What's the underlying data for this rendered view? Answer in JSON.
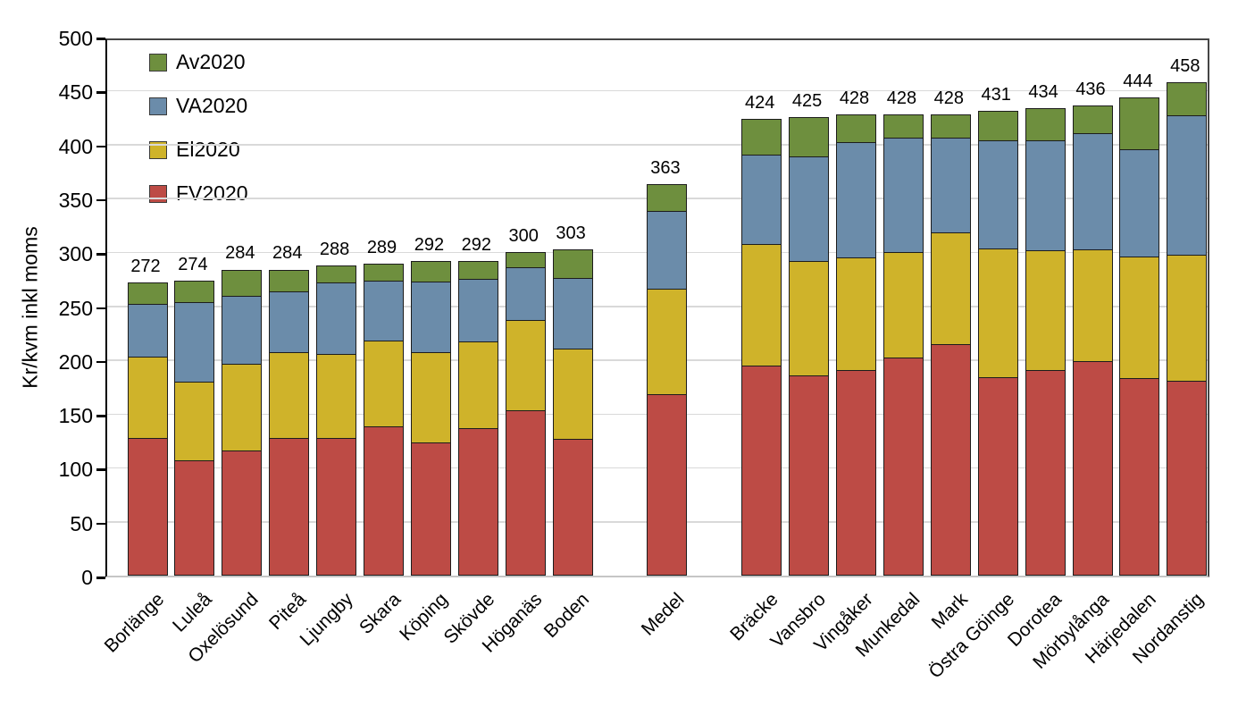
{
  "chart_data": {
    "type": "bar",
    "variant": "stacked",
    "title": "",
    "xlabel": "",
    "ylabel": "Kr/kvm inkl moms",
    "ylim": [
      0,
      500
    ],
    "yticks": [
      0,
      50,
      100,
      150,
      200,
      250,
      300,
      350,
      400,
      450,
      500
    ],
    "grid": true,
    "legend_position": "top-left-inside",
    "legend": [
      {
        "label": "Av2020",
        "color": "#6e8f3e"
      },
      {
        "label": "VA2020",
        "color": "#6b8caa"
      },
      {
        "label": "El2020",
        "color": "#cfb32a"
      },
      {
        "label": "FV2020",
        "color": "#bd4b45"
      }
    ],
    "series_order_bottom_to_top": [
      "FV2020",
      "El2020",
      "VA2020",
      "Av2020"
    ],
    "bars": [
      {
        "slot": 0,
        "name": "Borlänge",
        "total": 272,
        "values": {
          "FV2020": 128,
          "El2020": 76,
          "VA2020": 49,
          "Av2020": 19
        }
      },
      {
        "slot": 1,
        "name": "Luleå",
        "total": 274,
        "values": {
          "FV2020": 107,
          "El2020": 73,
          "VA2020": 74,
          "Av2020": 20
        }
      },
      {
        "slot": 2,
        "name": "Oxelösund",
        "total": 284,
        "values": {
          "FV2020": 116,
          "El2020": 81,
          "VA2020": 63,
          "Av2020": 24
        }
      },
      {
        "slot": 3,
        "name": "Piteå",
        "total": 284,
        "values": {
          "FV2020": 128,
          "El2020": 80,
          "VA2020": 56,
          "Av2020": 20
        }
      },
      {
        "slot": 4,
        "name": "Ljungby",
        "total": 288,
        "values": {
          "FV2020": 128,
          "El2020": 78,
          "VA2020": 67,
          "Av2020": 15
        }
      },
      {
        "slot": 5,
        "name": "Skara",
        "total": 289,
        "values": {
          "FV2020": 139,
          "El2020": 80,
          "VA2020": 55,
          "Av2020": 15
        }
      },
      {
        "slot": 6,
        "name": "Köping",
        "total": 292,
        "values": {
          "FV2020": 124,
          "El2020": 84,
          "VA2020": 65,
          "Av2020": 19
        }
      },
      {
        "slot": 7,
        "name": "Skövde",
        "total": 292,
        "values": {
          "FV2020": 137,
          "El2020": 81,
          "VA2020": 58,
          "Av2020": 16
        }
      },
      {
        "slot": 8,
        "name": "Höganäs",
        "total": 300,
        "values": {
          "FV2020": 154,
          "El2020": 84,
          "VA2020": 49,
          "Av2020": 13
        }
      },
      {
        "slot": 9,
        "name": "Boden",
        "total": 303,
        "values": {
          "FV2020": 127,
          "El2020": 84,
          "VA2020": 66,
          "Av2020": 26
        }
      },
      {
        "slot": 11,
        "name": "Medel",
        "total": 363,
        "values": {
          "FV2020": 169,
          "El2020": 98,
          "VA2020": 72,
          "Av2020": 24
        }
      },
      {
        "slot": 13,
        "name": "Bräcke",
        "total": 424,
        "values": {
          "FV2020": 195,
          "El2020": 113,
          "VA2020": 83,
          "Av2020": 33
        }
      },
      {
        "slot": 14,
        "name": "Vansbro",
        "total": 425,
        "values": {
          "FV2020": 186,
          "El2020": 106,
          "VA2020": 97,
          "Av2020": 36
        }
      },
      {
        "slot": 15,
        "name": "Vingåker",
        "total": 428,
        "values": {
          "FV2020": 191,
          "El2020": 105,
          "VA2020": 107,
          "Av2020": 25
        }
      },
      {
        "slot": 16,
        "name": "Munkedal",
        "total": 428,
        "values": {
          "FV2020": 203,
          "El2020": 98,
          "VA2020": 106,
          "Av2020": 21
        }
      },
      {
        "slot": 17,
        "name": "Mark",
        "total": 428,
        "values": {
          "FV2020": 215,
          "El2020": 104,
          "VA2020": 88,
          "Av2020": 21
        }
      },
      {
        "slot": 18,
        "name": "Östra Göinge",
        "total": 431,
        "values": {
          "FV2020": 184,
          "El2020": 120,
          "VA2020": 100,
          "Av2020": 27
        }
      },
      {
        "slot": 19,
        "name": "Dorotea",
        "total": 434,
        "values": {
          "FV2020": 191,
          "El2020": 111,
          "VA2020": 102,
          "Av2020": 30
        }
      },
      {
        "slot": 20,
        "name": "Mörbylånga",
        "total": 436,
        "values": {
          "FV2020": 199,
          "El2020": 104,
          "VA2020": 108,
          "Av2020": 25
        }
      },
      {
        "slot": 21,
        "name": "Härjedalen",
        "total": 444,
        "values": {
          "FV2020": 183,
          "El2020": 113,
          "VA2020": 100,
          "Av2020": 48
        }
      },
      {
        "slot": 22,
        "name": "Nordanstig",
        "total": 458,
        "values": {
          "FV2020": 181,
          "El2020": 117,
          "VA2020": 130,
          "Av2020": 30
        }
      }
    ]
  }
}
